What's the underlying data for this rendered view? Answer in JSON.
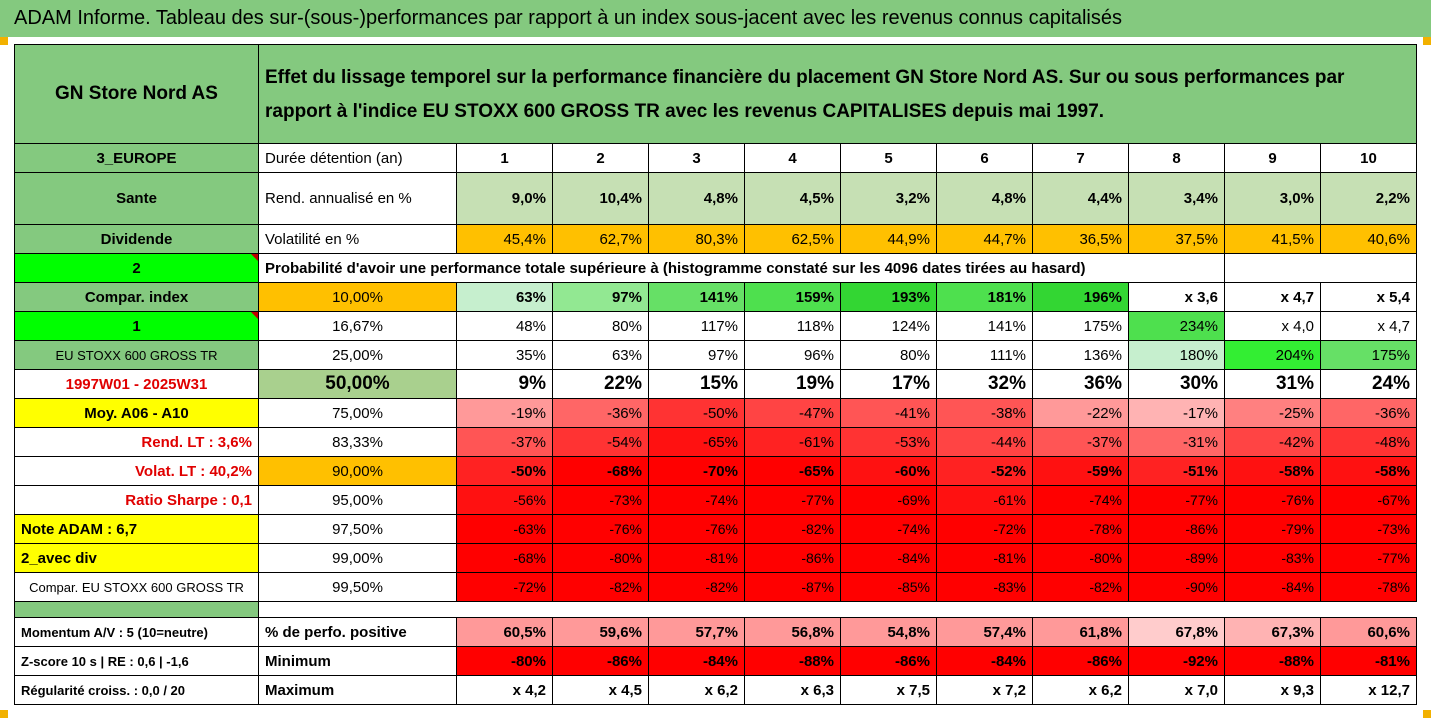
{
  "title": "ADAM Informe. Tableau des sur-(sous-)performances par rapport à un index sous-jacent avec les revenus connus capitalisés",
  "colors": {
    "header_green": "#84c97f",
    "bright_green": "#00ff00",
    "orange": "#ffc000",
    "yellow": "#ffff00",
    "red": "#ff0000"
  },
  "header": {
    "company": "GN Store Nord AS",
    "description": "Effet du lissage temporel sur la performance financière du placement GN Store Nord AS. Sur ou sous performances par rapport à l'indice EU STOXX 600 GROSS TR avec les revenus CAPITALISES depuis mai 1997."
  },
  "years_row": {
    "left": "3_EUROPE",
    "label": "Durée détention (an)",
    "values": [
      "1",
      "2",
      "3",
      "4",
      "5",
      "6",
      "7",
      "8",
      "9",
      "10"
    ]
  },
  "rend_row": {
    "left": "Sante",
    "label": "Rend. annualisé en %",
    "values": [
      "9,0%",
      "10,4%",
      "4,8%",
      "4,5%",
      "3,2%",
      "4,8%",
      "4,4%",
      "3,4%",
      "3,0%",
      "2,2%"
    ]
  },
  "vol_row": {
    "left": "Dividende",
    "label": "Volatilité en %",
    "values": [
      "45,4%",
      "62,7%",
      "80,3%",
      "62,5%",
      "44,9%",
      "44,7%",
      "36,5%",
      "37,5%",
      "41,5%",
      "40,6%"
    ]
  },
  "prob_row": {
    "left": "2",
    "label": "Probabilité d'avoir une performance totale supérieure à (histogramme constaté sur les 4096 dates tirées au hasard)"
  },
  "prob_rows": [
    {
      "left": "Compar. index",
      "pct": "10,00%",
      "values": [
        "63%",
        "97%",
        "141%",
        "159%",
        "193%",
        "181%",
        "196%",
        "x 3,6",
        "x 4,7",
        "x 5,4"
      ]
    },
    {
      "left": "1",
      "pct": "16,67%",
      "values": [
        "48%",
        "80%",
        "117%",
        "118%",
        "124%",
        "141%",
        "175%",
        "234%",
        "x 4,0",
        "x 4,7"
      ]
    },
    {
      "left": "EU STOXX 600 GROSS TR",
      "pct": "25,00%",
      "values": [
        "35%",
        "63%",
        "97%",
        "96%",
        "80%",
        "111%",
        "136%",
        "180%",
        "204%",
        "175%"
      ]
    },
    {
      "left": "1997W01 - 2025W31",
      "pct": "50,00%",
      "values": [
        "9%",
        "22%",
        "15%",
        "19%",
        "17%",
        "32%",
        "36%",
        "30%",
        "31%",
        "24%"
      ]
    },
    {
      "left": "Moy. A06 - A10",
      "pct": "75,00%",
      "values": [
        "-19%",
        "-36%",
        "-50%",
        "-47%",
        "-41%",
        "-38%",
        "-22%",
        "-17%",
        "-25%",
        "-36%"
      ]
    },
    {
      "left": "Rend. LT :   3,6%",
      "pct": "83,33%",
      "values": [
        "-37%",
        "-54%",
        "-65%",
        "-61%",
        "-53%",
        "-44%",
        "-37%",
        "-31%",
        "-42%",
        "-48%"
      ]
    },
    {
      "left": "Volat. LT :   40,2%",
      "pct": "90,00%",
      "values": [
        "-50%",
        "-68%",
        "-70%",
        "-65%",
        "-60%",
        "-52%",
        "-59%",
        "-51%",
        "-58%",
        "-58%"
      ]
    },
    {
      "left": "Ratio Sharpe :   0,1",
      "pct": "95,00%",
      "values": [
        "-56%",
        "-73%",
        "-74%",
        "-77%",
        "-69%",
        "-61%",
        "-74%",
        "-77%",
        "-76%",
        "-67%"
      ]
    },
    {
      "left": "Note ADAM : 6,7",
      "pct": "97,50%",
      "values": [
        "-63%",
        "-76%",
        "-76%",
        "-82%",
        "-74%",
        "-72%",
        "-78%",
        "-86%",
        "-79%",
        "-73%"
      ]
    },
    {
      "left": "2_avec div",
      "pct": "99,00%",
      "values": [
        "-68%",
        "-80%",
        "-81%",
        "-86%",
        "-84%",
        "-81%",
        "-80%",
        "-89%",
        "-83%",
        "-77%"
      ]
    },
    {
      "left": "Compar. EU STOXX 600 GROSS TR",
      "pct": "99,50%",
      "values": [
        "-72%",
        "-82%",
        "-82%",
        "-87%",
        "-85%",
        "-83%",
        "-82%",
        "-90%",
        "-84%",
        "-78%"
      ]
    }
  ],
  "bottom_rows": [
    {
      "left": "Momentum A/V : 5 (10=neutre)",
      "label": "% de perfo. positive",
      "values": [
        "60,5%",
        "59,6%",
        "57,7%",
        "56,8%",
        "54,8%",
        "57,4%",
        "61,8%",
        "67,8%",
        "67,3%",
        "60,6%"
      ]
    },
    {
      "left": "Z-score 10 s  | RE : 0,6 | -1,6",
      "label": "Minimum",
      "values": [
        "-80%",
        "-86%",
        "-84%",
        "-88%",
        "-86%",
        "-84%",
        "-86%",
        "-92%",
        "-88%",
        "-81%"
      ]
    },
    {
      "left": "Régularité croiss. : 0,0 / 20",
      "label": "Maximum",
      "values": [
        "x 4,2",
        "x 4,5",
        "x 6,2",
        "x 6,3",
        "x 7,5",
        "x 7,2",
        "x 6,2",
        "x 7,0",
        "x 9,3",
        "x 12,7"
      ]
    }
  ]
}
